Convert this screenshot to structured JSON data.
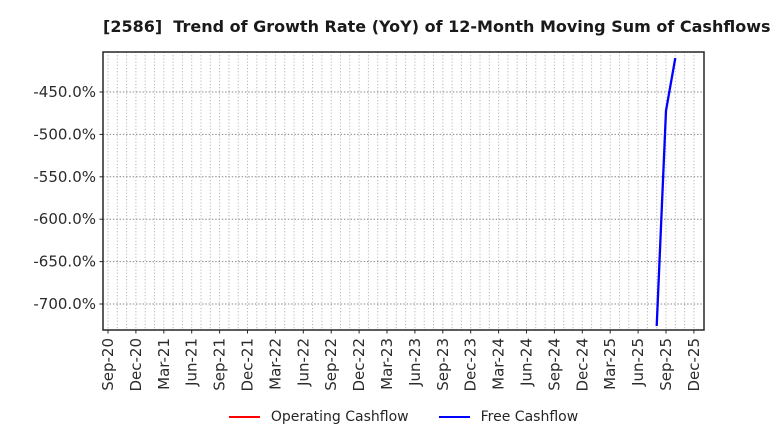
{
  "chart_data": {
    "type": "line",
    "title": "[2586]  Trend of Growth Rate (YoY) of 12-Month Moving Sum of Cashflows",
    "xlabel": "",
    "ylabel": "",
    "x_tick_labels": [
      "Sep-20",
      "Dec-20",
      "Mar-21",
      "Jun-21",
      "Sep-21",
      "Dec-21",
      "Mar-22",
      "Jun-22",
      "Sep-22",
      "Dec-22",
      "Mar-23",
      "Jun-23",
      "Sep-23",
      "Dec-23",
      "Mar-24",
      "Jun-24",
      "Sep-24",
      "Dec-24",
      "Mar-25",
      "Jun-25",
      "Sep-25",
      "Dec-25"
    ],
    "y_tick_labels": [
      "-450.0%",
      "-500.0%",
      "-550.0%",
      "-600.0%",
      "-650.0%",
      "-700.0%"
    ],
    "y_tick_values": [
      -450,
      -500,
      -550,
      -600,
      -650,
      -700
    ],
    "ylim": [
      -731,
      -403
    ],
    "x_axis_start": "Sep-20",
    "grid": true,
    "grid_style": "dotted",
    "legend_position": "bottom-center",
    "series": [
      {
        "name": "Operating Cashflow",
        "color": "#ff0000",
        "points": []
      },
      {
        "name": "Free Cashflow",
        "color": "#0000ff",
        "points": [
          {
            "month": "Aug-25",
            "value": -726
          },
          {
            "month": "Sep-25",
            "value": -472
          },
          {
            "month": "Oct-25",
            "value": -410
          }
        ]
      }
    ]
  },
  "legend": {
    "items": [
      {
        "label": "Operating Cashflow",
        "color": "#ff0000"
      },
      {
        "label": "Free Cashflow",
        "color": "#0000ff"
      }
    ]
  },
  "style": {
    "background": "#ffffff",
    "axis_color": "#262626",
    "grid_color_h": "#8a8a8a",
    "grid_color_v": "#ababab",
    "tick_label_color": "#2b2b2b",
    "title_color": "#1a1a1a"
  }
}
